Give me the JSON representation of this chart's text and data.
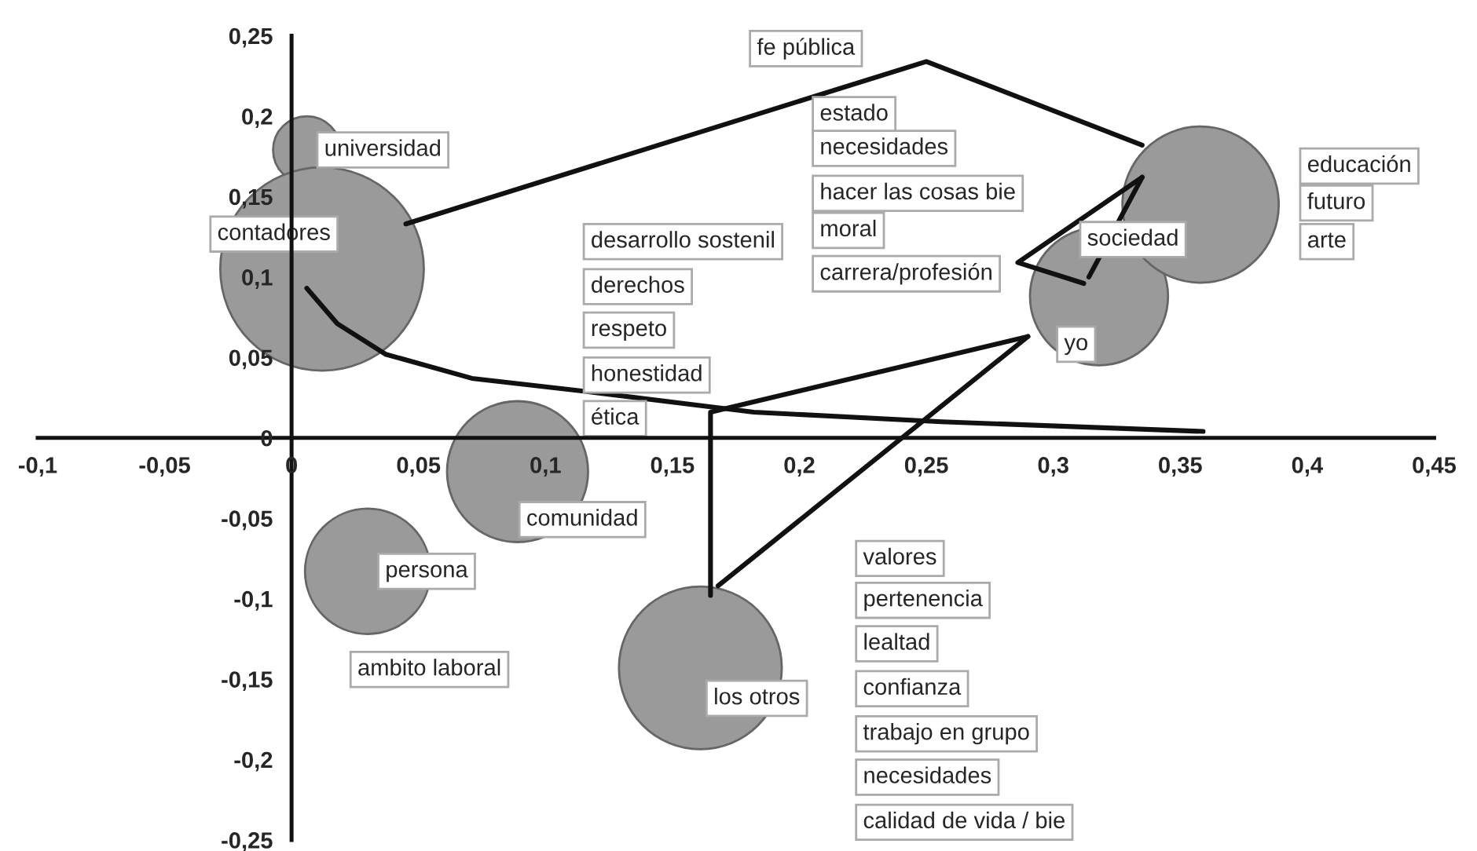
{
  "chart_data": {
    "type": "bubble",
    "xlim": [
      -0.1,
      0.45
    ],
    "ylim": [
      -0.25,
      0.25
    ],
    "xticks": [
      {
        "value": -0.1,
        "label": "-0,1"
      },
      {
        "value": -0.05,
        "label": "-0,05"
      },
      {
        "value": 0,
        "label": "0"
      },
      {
        "value": 0.05,
        "label": "0,05"
      },
      {
        "value": 0.1,
        "label": "0,1"
      },
      {
        "value": 0.15,
        "label": "0,15"
      },
      {
        "value": 0.2,
        "label": "0,2"
      },
      {
        "value": 0.25,
        "label": "0,25"
      },
      {
        "value": 0.3,
        "label": "0,3"
      },
      {
        "value": 0.35,
        "label": "0,35"
      },
      {
        "value": 0.4,
        "label": "0,4"
      },
      {
        "value": 0.45,
        "label": "0,45"
      }
    ],
    "yticks": [
      {
        "value": -0.25,
        "label": "-0,25"
      },
      {
        "value": -0.2,
        "label": "-0,2"
      },
      {
        "value": -0.15,
        "label": "-0,15"
      },
      {
        "value": -0.1,
        "label": "-0,1"
      },
      {
        "value": -0.05,
        "label": "-0,05"
      },
      {
        "value": 0,
        "label": "0"
      },
      {
        "value": 0.05,
        "label": "0,05"
      },
      {
        "value": 0.1,
        "label": "0,1"
      },
      {
        "value": 0.15,
        "label": "0,15"
      },
      {
        "value": 0.2,
        "label": "0,2"
      },
      {
        "value": 0.25,
        "label": "0,25"
      }
    ],
    "grid": false,
    "series": [
      {
        "color": "#9a9a9a",
        "x": [
          0.006,
          0.012,
          0.089,
          0.03,
          0.161,
          0.318,
          0.358
        ],
        "values": [
          0.179,
          0.105,
          -0.021,
          -0.083,
          -0.143,
          0.088,
          0.145
        ],
        "sizes": [
          0.11,
          1,
          0.48,
          0.38,
          0.64,
          0.46,
          0.59
        ],
        "value_labels": [
          "universidad",
          "contadores",
          "comunidad",
          "persona",
          "los otros",
          "yo",
          "sociedad"
        ]
      },
      {
        "type": "line",
        "color": "#111111",
        "x": [
          0.045,
          0.25,
          0.335
        ],
        "values": [
          0.133,
          0.234,
          0.182
        ]
      },
      {
        "type": "line",
        "color": "#111111",
        "x": [
          0.006,
          0.018,
          0.037,
          0.071,
          0.115,
          0.182,
          0.256,
          0.359
        ],
        "values": [
          0.093,
          0.071,
          0.052,
          0.037,
          0.029,
          0.016,
          0.01,
          0.004
        ]
      },
      {
        "type": "line",
        "color": "#111111",
        "x": [
          0.165,
          0.165,
          0.29
        ],
        "values": [
          -0.098,
          0.016,
          0.063
        ]
      },
      {
        "type": "line",
        "color": "#111111",
        "x": [
          0.168,
          0.29
        ],
        "values": [
          -0.092,
          0.063
        ]
      },
      {
        "type": "line",
        "color": "#111111",
        "x": [
          0.312,
          0.286,
          0.335
        ],
        "values": [
          0.096,
          0.109,
          0.162
        ]
      },
      {
        "type": "line",
        "color": "#111111",
        "x": [
          0.335,
          0.314
        ],
        "values": [
          0.162,
          0.1
        ]
      }
    ],
    "annotations": [
      "ambito laboral",
      "fe pública",
      "estado",
      "necesidades",
      "hacer las cosas bie",
      "moral",
      "carrera/profesión",
      "desarrollo sostenil",
      "derechos",
      "respeto",
      "honestidad",
      "ética",
      "educación",
      "futuro",
      "arte",
      "valores",
      "pertenencia",
      "lealtad",
      "confianza",
      "trabajo en grupo",
      "necesidades",
      "calidad de vida / bie"
    ]
  }
}
